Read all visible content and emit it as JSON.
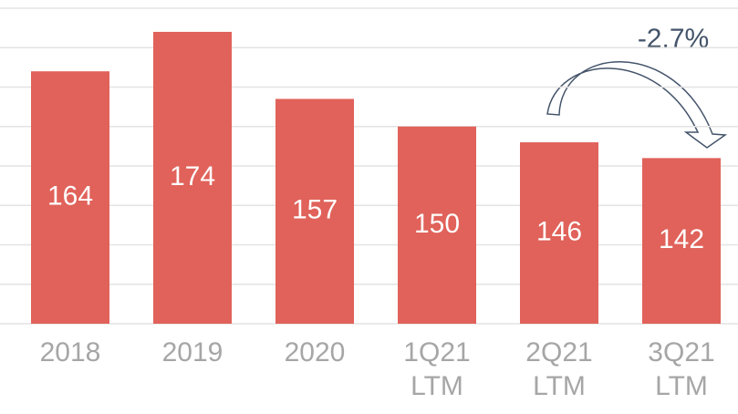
{
  "chart_data": {
    "type": "bar",
    "categories": [
      "2018",
      "2019",
      "2020",
      "1Q21\nLTM",
      "2Q21\nLTM",
      "3Q21\nLTM"
    ],
    "values": [
      164,
      174,
      157,
      150,
      146,
      142
    ],
    "color": "#e0625a",
    "ylim": [
      100,
      180
    ],
    "yticks": [
      100,
      110,
      120,
      130,
      140,
      150,
      160,
      170,
      180
    ],
    "grid": true,
    "annotations": [
      "-2.7%"
    ]
  }
}
